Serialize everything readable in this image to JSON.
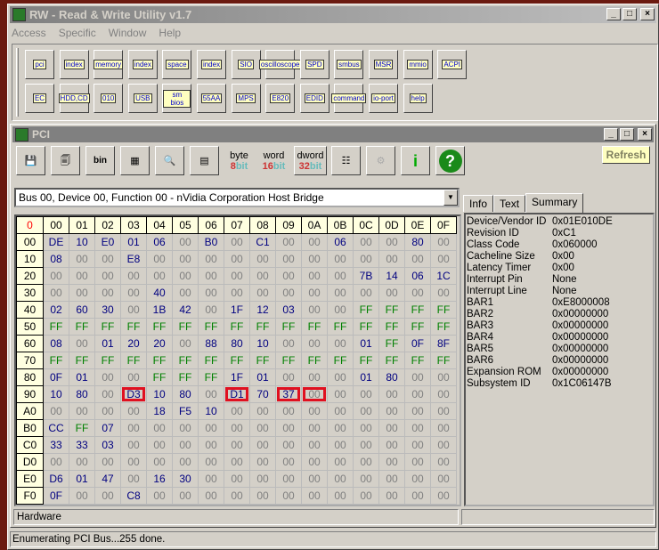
{
  "window": {
    "title": "RW - Read & Write Utility v1.7",
    "controls": [
      "_",
      "□",
      "×"
    ]
  },
  "menu": [
    "Access",
    "Specific",
    "Window",
    "Help"
  ],
  "toolbar": {
    "row1": [
      "pci",
      "index",
      "memory",
      "index",
      "space",
      "index",
      "SIO",
      "oscilloscope",
      "SPD",
      "smbus",
      "MSR",
      "mmio",
      "ACPI"
    ],
    "row2": [
      "EC",
      "HDD,CD",
      "010",
      "USB",
      "sm bios",
      "55AA",
      "MPS",
      "E820",
      "EDID",
      "command",
      "io-port",
      "help"
    ]
  },
  "child": {
    "title": "PCI",
    "toolbar": [
      "save",
      "save-all",
      "bin",
      "load",
      "find",
      "compare"
    ],
    "byte": {
      "label": "byte",
      "n": "8",
      "b": "bit"
    },
    "word": {
      "label": "word",
      "n": "16",
      "b": "bit"
    },
    "dword": {
      "label": "dword",
      "n": "32",
      "b": "bit"
    },
    "refresh": "Refresh"
  },
  "device_select": "Bus 00, Device 00, Function 00 - nVidia Corporation Host Bridge",
  "grid": {
    "corner": "0",
    "cols": [
      "00",
      "01",
      "02",
      "03",
      "04",
      "05",
      "06",
      "07",
      "08",
      "09",
      "0A",
      "0B",
      "0C",
      "0D",
      "0E",
      "0F"
    ],
    "rows": [
      {
        "addr": "00",
        "v": [
          "DE",
          "10",
          "E0",
          "01",
          "06",
          "00",
          "B0",
          "00",
          "C1",
          "00",
          "00",
          "06",
          "00",
          "00",
          "80",
          "00"
        ]
      },
      {
        "addr": "10",
        "v": [
          "08",
          "00",
          "00",
          "E8",
          "00",
          "00",
          "00",
          "00",
          "00",
          "00",
          "00",
          "00",
          "00",
          "00",
          "00",
          "00"
        ]
      },
      {
        "addr": "20",
        "v": [
          "00",
          "00",
          "00",
          "00",
          "00",
          "00",
          "00",
          "00",
          "00",
          "00",
          "00",
          "00",
          "7B",
          "14",
          "06",
          "1C"
        ]
      },
      {
        "addr": "30",
        "v": [
          "00",
          "00",
          "00",
          "00",
          "40",
          "00",
          "00",
          "00",
          "00",
          "00",
          "00",
          "00",
          "00",
          "00",
          "00",
          "00"
        ]
      },
      {
        "addr": "40",
        "v": [
          "02",
          "60",
          "30",
          "00",
          "1B",
          "42",
          "00",
          "1F",
          "12",
          "03",
          "00",
          "00",
          "FF",
          "FF",
          "FF",
          "FF"
        ]
      },
      {
        "addr": "50",
        "v": [
          "FF",
          "FF",
          "FF",
          "FF",
          "FF",
          "FF",
          "FF",
          "FF",
          "FF",
          "FF",
          "FF",
          "FF",
          "FF",
          "FF",
          "FF",
          "FF"
        ]
      },
      {
        "addr": "60",
        "v": [
          "08",
          "00",
          "01",
          "20",
          "20",
          "00",
          "88",
          "80",
          "10",
          "00",
          "00",
          "00",
          "01",
          "FF",
          "0F",
          "8F"
        ]
      },
      {
        "addr": "70",
        "v": [
          "FF",
          "FF",
          "FF",
          "FF",
          "FF",
          "FF",
          "FF",
          "FF",
          "FF",
          "FF",
          "FF",
          "FF",
          "FF",
          "FF",
          "FF",
          "FF"
        ]
      },
      {
        "addr": "80",
        "v": [
          "0F",
          "01",
          "00",
          "00",
          "FF",
          "FF",
          "FF",
          "1F",
          "01",
          "00",
          "00",
          "00",
          "01",
          "80",
          "00",
          "00"
        ]
      },
      {
        "addr": "90",
        "v": [
          "10",
          "80",
          "00",
          "D3",
          "10",
          "80",
          "00",
          "D1",
          "70",
          "37",
          "00",
          "00",
          "00",
          "00",
          "00",
          "00"
        ],
        "highlighted": [
          3,
          7,
          9,
          10
        ]
      },
      {
        "addr": "A0",
        "v": [
          "00",
          "00",
          "00",
          "00",
          "18",
          "F5",
          "10",
          "00",
          "00",
          "00",
          "00",
          "00",
          "00",
          "00",
          "00",
          "00"
        ]
      },
      {
        "addr": "B0",
        "v": [
          "CC",
          "FF",
          "07",
          "00",
          "00",
          "00",
          "00",
          "00",
          "00",
          "00",
          "00",
          "00",
          "00",
          "00",
          "00",
          "00"
        ]
      },
      {
        "addr": "C0",
        "v": [
          "33",
          "33",
          "03",
          "00",
          "00",
          "00",
          "00",
          "00",
          "00",
          "00",
          "00",
          "00",
          "00",
          "00",
          "00",
          "00"
        ]
      },
      {
        "addr": "D0",
        "v": [
          "00",
          "00",
          "00",
          "00",
          "00",
          "00",
          "00",
          "00",
          "00",
          "00",
          "00",
          "00",
          "00",
          "00",
          "00",
          "00"
        ]
      },
      {
        "addr": "E0",
        "v": [
          "D6",
          "01",
          "47",
          "00",
          "16",
          "30",
          "00",
          "00",
          "00",
          "00",
          "00",
          "00",
          "00",
          "00",
          "00",
          "00"
        ]
      },
      {
        "addr": "F0",
        "v": [
          "0F",
          "00",
          "00",
          "C8",
          "00",
          "00",
          "00",
          "00",
          "00",
          "00",
          "00",
          "00",
          "00",
          "00",
          "00",
          "00"
        ]
      }
    ]
  },
  "tabs": [
    {
      "label": "Info"
    },
    {
      "label": "Text"
    },
    {
      "label": "Summary",
      "active": true
    }
  ],
  "summary": [
    {
      "k": "Device/Vendor ID",
      "v": "0x01E010DE"
    },
    {
      "k": "Revision ID",
      "v": "0xC1"
    },
    {
      "k": "Class Code",
      "v": "0x060000"
    },
    {
      "k": "Cacheline Size",
      "v": "0x00"
    },
    {
      "k": "Latency Timer",
      "v": "0x00"
    },
    {
      "k": "Interrupt Pin",
      "v": "None"
    },
    {
      "k": "Interrupt Line",
      "v": "None"
    },
    {
      "k": "BAR1",
      "v": "0xE8000008"
    },
    {
      "k": "BAR2",
      "v": "0x00000000"
    },
    {
      "k": "BAR3",
      "v": "0x00000000"
    },
    {
      "k": "BAR4",
      "v": "0x00000000"
    },
    {
      "k": "BAR5",
      "v": "0x00000000"
    },
    {
      "k": "BAR6",
      "v": "0x00000000"
    },
    {
      "k": "Expansion ROM",
      "v": "0x00000000"
    },
    {
      "k": "Subsystem ID",
      "v": "0x1C06147B"
    }
  ],
  "hardware_label": "Hardware",
  "status": "Enumerating PCI Bus...255 done.",
  "colors": {
    "zero": "#808080",
    "ff": "#008000",
    "value": "#000080",
    "highlight": "#e01020",
    "header": "#ffffe0"
  }
}
